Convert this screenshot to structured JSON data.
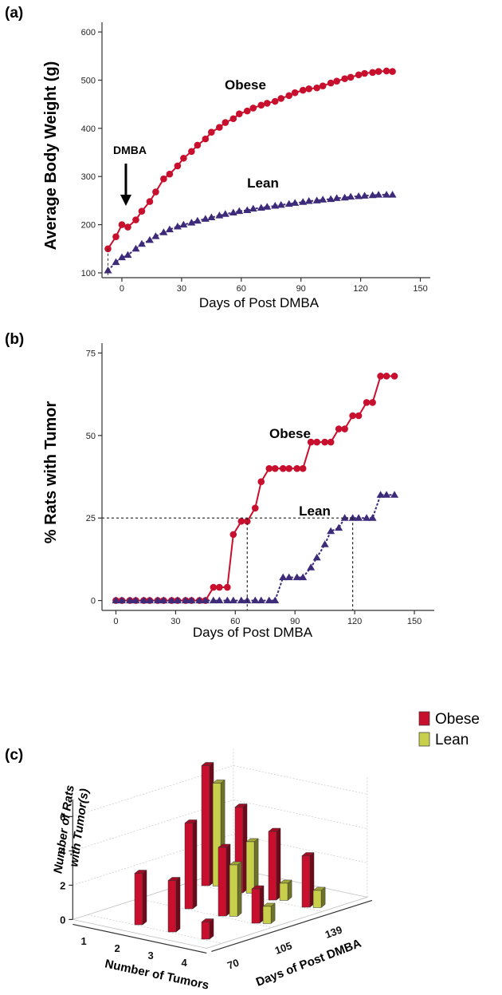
{
  "chart_data": [
    {
      "panel": "(a)",
      "type": "line",
      "xlabel": "Days of Post DMBA",
      "ylabel": "Average Body Weight (g)",
      "xlim": [
        -10,
        155
      ],
      "ylim": [
        90,
        620
      ],
      "xticks": [
        0,
        30,
        60,
        90,
        120,
        150
      ],
      "yticks": [
        100,
        200,
        300,
        400,
        500,
        600
      ],
      "annotation": {
        "text": "DMBA",
        "x": 2
      },
      "series": [
        {
          "name": "Obese",
          "marker": "circle",
          "color": "#c8102e",
          "x": [
            -7,
            -3,
            0,
            3,
            7,
            10,
            14,
            17,
            21,
            24,
            28,
            31,
            35,
            38,
            42,
            45,
            49,
            52,
            56,
            59,
            63,
            66,
            70,
            73,
            77,
            80,
            84,
            87,
            91,
            94,
            98,
            101,
            105,
            108,
            112,
            115,
            119,
            122,
            126,
            129,
            133,
            136
          ],
          "y": [
            150,
            175,
            200,
            195,
            210,
            228,
            248,
            268,
            295,
            305,
            322,
            338,
            352,
            365,
            378,
            392,
            402,
            412,
            420,
            430,
            436,
            442,
            448,
            452,
            456,
            462,
            468,
            474,
            479,
            482,
            484,
            488,
            494,
            498,
            503,
            506,
            511,
            514,
            516,
            518,
            519,
            518
          ]
        },
        {
          "name": "Lean",
          "marker": "triangle",
          "color": "#3d2b7a",
          "x": [
            -7,
            -3,
            0,
            3,
            7,
            10,
            14,
            17,
            21,
            24,
            28,
            31,
            35,
            38,
            42,
            45,
            49,
            52,
            56,
            59,
            63,
            66,
            70,
            73,
            77,
            80,
            84,
            87,
            91,
            94,
            98,
            101,
            105,
            108,
            112,
            115,
            119,
            122,
            126,
            129,
            133,
            136
          ],
          "y": [
            105,
            122,
            132,
            137,
            150,
            160,
            168,
            176,
            184,
            190,
            196,
            200,
            204,
            208,
            212,
            215,
            219,
            222,
            225,
            228,
            230,
            233,
            235,
            237,
            239,
            241,
            243,
            245,
            247,
            249,
            250,
            252,
            253,
            255,
            256,
            258,
            259,
            260,
            261,
            262,
            262,
            262
          ]
        }
      ]
    },
    {
      "panel": "(b)",
      "type": "line",
      "xlabel": "Days of Post DMBA",
      "ylabel": "% Rats with Tumor",
      "xlim": [
        -7,
        160
      ],
      "ylim": [
        -3,
        78
      ],
      "xticks": [
        0,
        30,
        60,
        90,
        120,
        150
      ],
      "yticks": [
        0,
        25,
        50,
        75
      ],
      "reference": {
        "y": 25,
        "obese_x": 66,
        "lean_x": 119
      },
      "series": [
        {
          "name": "Obese",
          "marker": "circle",
          "color": "#c8102e",
          "x": [
            0,
            3,
            7,
            10,
            14,
            17,
            21,
            24,
            28,
            31,
            35,
            38,
            42,
            45,
            49,
            52,
            56,
            59,
            63,
            66,
            70,
            73,
            77,
            80,
            84,
            87,
            91,
            94,
            98,
            101,
            105,
            108,
            112,
            115,
            119,
            122,
            126,
            129,
            133,
            136,
            140
          ],
          "y": [
            0,
            0,
            0,
            0,
            0,
            0,
            0,
            0,
            0,
            0,
            0,
            0,
            0,
            0,
            4,
            4,
            4,
            20,
            24,
            24,
            28,
            36,
            40,
            40,
            40,
            40,
            40,
            40,
            48,
            48,
            48,
            48,
            52,
            52,
            56,
            56,
            60,
            60,
            68,
            68,
            68
          ]
        },
        {
          "name": "Lean",
          "marker": "triangle",
          "color": "#3d2b7a",
          "x": [
            0,
            3,
            7,
            10,
            14,
            17,
            21,
            24,
            28,
            31,
            35,
            38,
            42,
            45,
            49,
            52,
            56,
            59,
            63,
            66,
            70,
            73,
            77,
            80,
            84,
            87,
            91,
            94,
            98,
            101,
            105,
            108,
            112,
            115,
            119,
            122,
            126,
            129,
            133,
            136,
            140
          ],
          "y": [
            0,
            0,
            0,
            0,
            0,
            0,
            0,
            0,
            0,
            0,
            0,
            0,
            0,
            0,
            0,
            0,
            0,
            0,
            0,
            0,
            0,
            0,
            0,
            0,
            7,
            7,
            7,
            7,
            10,
            13,
            17,
            21,
            22,
            25,
            25,
            25,
            25,
            25,
            32,
            32,
            32
          ]
        }
      ]
    },
    {
      "panel": "(c)",
      "type": "bar",
      "xlabel": "Number of Tumors",
      "ylabel": "Days of Post DMBA",
      "zlabel_line1": "Number of Rats",
      "zlabel_line2": "with Tumor(s)",
      "tumor_ticks": [
        "1",
        "2",
        "3",
        "4"
      ],
      "day_ticks": [
        "70",
        "105",
        "139"
      ],
      "zticks": [
        "0",
        "2",
        "4",
        "6"
      ],
      "zlim": [
        0,
        7
      ],
      "series": [
        {
          "name": "Obese",
          "color": "#c8102e",
          "bars": [
            {
              "tumors": 2,
              "day": 70,
              "value": 3
            },
            {
              "tumors": 3,
              "day": 70,
              "value": 3
            },
            {
              "tumors": 4,
              "day": 70,
              "value": 1
            },
            {
              "tumors": 2,
              "day": 105,
              "value": 5
            },
            {
              "tumors": 3,
              "day": 105,
              "value": 4
            },
            {
              "tumors": 4,
              "day": 105,
              "value": 2
            },
            {
              "tumors": 1,
              "day": 139,
              "value": 7
            },
            {
              "tumors": 2,
              "day": 139,
              "value": 5
            },
            {
              "tumors": 3,
              "day": 139,
              "value": 4
            },
            {
              "tumors": 4,
              "day": 139,
              "value": 3
            }
          ]
        },
        {
          "name": "Lean",
          "color": "#c8cf4a",
          "bars": [
            {
              "tumors": 3,
              "day": 105,
              "value": 3
            },
            {
              "tumors": 4,
              "day": 105,
              "value": 1
            },
            {
              "tumors": 1,
              "day": 139,
              "value": 6
            },
            {
              "tumors": 2,
              "day": 139,
              "value": 3
            },
            {
              "tumors": 3,
              "day": 139,
              "value": 1
            },
            {
              "tumors": 4,
              "day": 139,
              "value": 1
            }
          ]
        }
      ],
      "legend": [
        "Obese",
        "Lean"
      ],
      "legend_position": "top-right"
    }
  ]
}
